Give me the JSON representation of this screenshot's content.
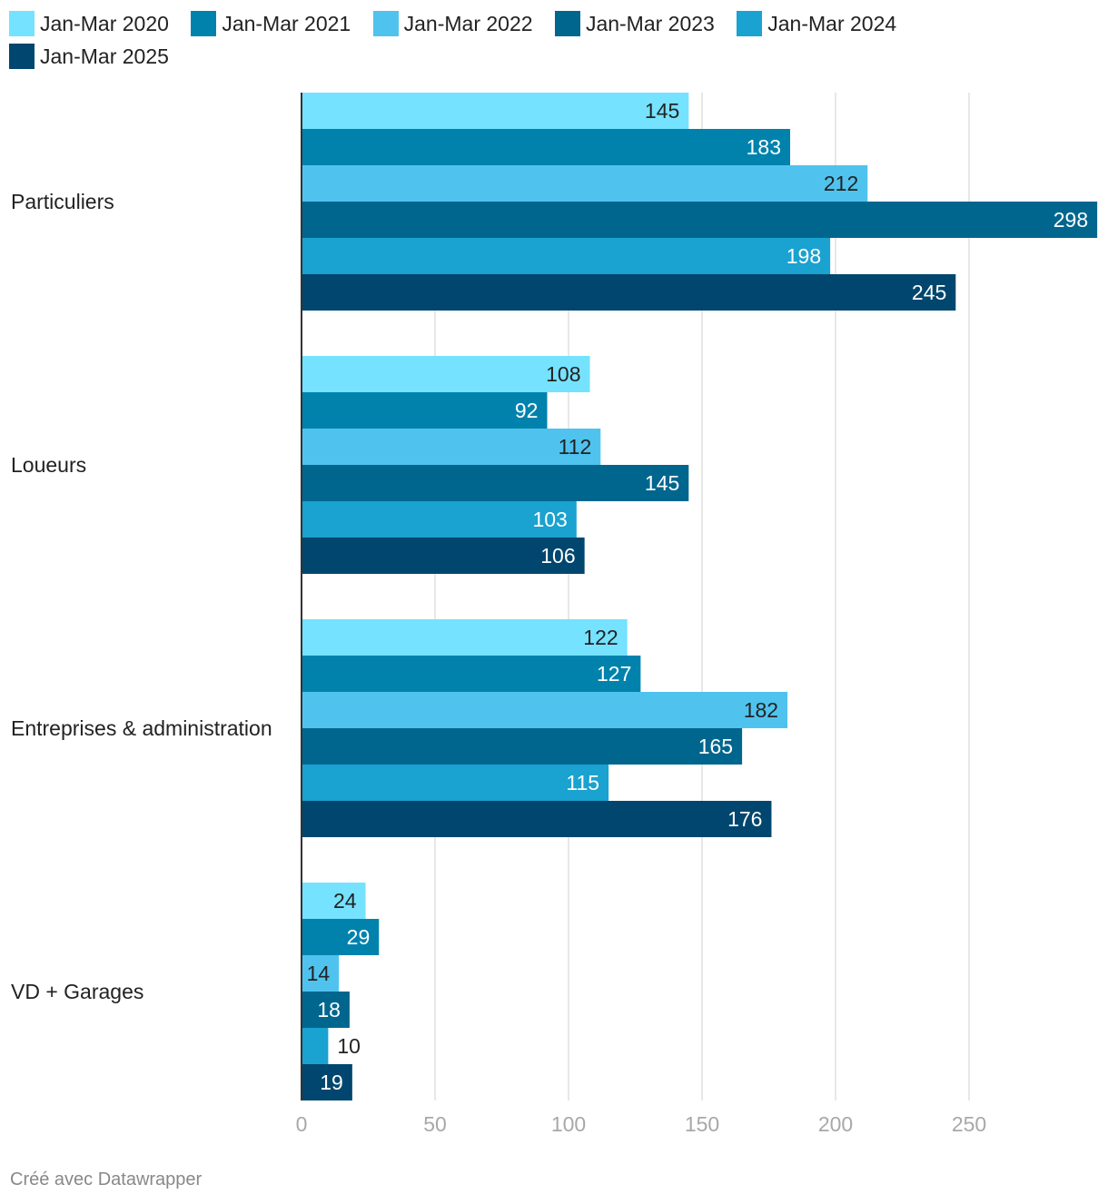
{
  "chart_data": {
    "type": "bar",
    "orientation": "horizontal",
    "categories": [
      "Particuliers",
      "Loueurs",
      "Entreprises & administration",
      "VD + Garages"
    ],
    "series": [
      {
        "name": "Jan-Mar 2020",
        "color": "#75e2ff",
        "values": [
          145,
          108,
          122,
          24
        ]
      },
      {
        "name": "Jan-Mar 2021",
        "color": "#0082ad",
        "values": [
          183,
          92,
          127,
          29
        ]
      },
      {
        "name": "Jan-Mar 2022",
        "color": "#4fc3ee",
        "values": [
          212,
          112,
          182,
          14
        ]
      },
      {
        "name": "Jan-Mar 2023",
        "color": "#00668e",
        "values": [
          298,
          145,
          165,
          18
        ]
      },
      {
        "name": "Jan-Mar 2024",
        "color": "#1aa2d0",
        "values": [
          198,
          103,
          115,
          10
        ]
      },
      {
        "name": "Jan-Mar 2025",
        "color": "#00466e",
        "values": [
          245,
          106,
          176,
          19
        ]
      }
    ],
    "x_ticks": [
      "0",
      "50",
      "100",
      "150",
      "200",
      "250"
    ],
    "xlim": [
      0,
      298
    ],
    "grid": true,
    "legend_position": "top"
  },
  "legend_labels": {
    "s0": "Jan-Mar 2020",
    "s1": "Jan-Mar 2021",
    "s2": "Jan-Mar 2022",
    "s3": "Jan-Mar 2023",
    "s4": "Jan-Mar 2024",
    "s5": "Jan-Mar 2025"
  },
  "footer": "Créé avec Datawrapper"
}
